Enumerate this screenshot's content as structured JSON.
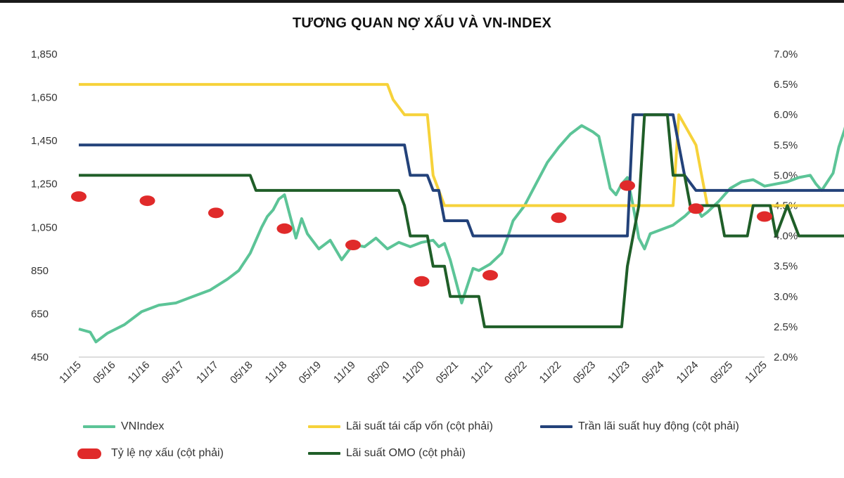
{
  "chart_data": {
    "type": "line",
    "title": "TƯƠNG QUAN NỢ XẤU VÀ VN-INDEX",
    "xlabel": "",
    "ylabel_left": "",
    "ylabel_right": "",
    "x_tick_labels": [
      "11/15",
      "05/16",
      "11/16",
      "05/17",
      "11/17",
      "05/18",
      "11/18",
      "05/19",
      "11/19",
      "05/20",
      "11/20",
      "05/21",
      "11/21",
      "05/22",
      "11/22",
      "05/23",
      "11/23",
      "05/24",
      "11/24",
      "05/25",
      "11/25"
    ],
    "y_left_ticks": [
      "1,850",
      "1,650",
      "1,450",
      "1,250",
      "1,050",
      "850",
      "650",
      "450"
    ],
    "y_right_ticks": [
      "7.0%",
      "6.5%",
      "6.0%",
      "5.5%",
      "5.0%",
      "4.5%",
      "4.0%",
      "3.5%",
      "3.0%",
      "2.5%",
      "2.0%"
    ],
    "ylim_left": [
      450,
      1850
    ],
    "ylim_right": [
      2.0,
      7.0
    ],
    "x_range_months": [
      0,
      120
    ],
    "grid": false,
    "legend_position": "bottom",
    "series": [
      {
        "name": "VNIndex",
        "axis": "left",
        "color": "#5cc497",
        "points": [
          [
            0,
            580
          ],
          [
            2,
            565
          ],
          [
            3,
            520
          ],
          [
            5,
            560
          ],
          [
            8,
            600
          ],
          [
            11,
            660
          ],
          [
            14,
            690
          ],
          [
            17,
            700
          ],
          [
            20,
            730
          ],
          [
            23,
            760
          ],
          [
            26,
            810
          ],
          [
            28,
            850
          ],
          [
            30,
            930
          ],
          [
            32,
            1050
          ],
          [
            33,
            1100
          ],
          [
            34,
            1130
          ],
          [
            35,
            1180
          ],
          [
            36,
            1200
          ],
          [
            37,
            1100
          ],
          [
            38,
            1000
          ],
          [
            39,
            1090
          ],
          [
            40,
            1020
          ],
          [
            42,
            950
          ],
          [
            44,
            990
          ],
          [
            46,
            900
          ],
          [
            48,
            970
          ],
          [
            50,
            960
          ],
          [
            52,
            1000
          ],
          [
            54,
            950
          ],
          [
            56,
            980
          ],
          [
            58,
            960
          ],
          [
            60,
            980
          ],
          [
            62,
            990
          ],
          [
            63,
            960
          ],
          [
            64,
            975
          ],
          [
            65,
            900
          ],
          [
            66,
            800
          ],
          [
            67,
            700
          ],
          [
            68,
            780
          ],
          [
            69,
            860
          ],
          [
            70,
            850
          ],
          [
            72,
            880
          ],
          [
            74,
            930
          ],
          [
            75,
            1000
          ],
          [
            76,
            1080
          ],
          [
            78,
            1150
          ],
          [
            80,
            1250
          ],
          [
            82,
            1350
          ],
          [
            84,
            1420
          ],
          [
            86,
            1480
          ],
          [
            88,
            1520
          ],
          [
            90,
            1490
          ],
          [
            91,
            1470
          ],
          [
            92,
            1350
          ],
          [
            93,
            1230
          ],
          [
            94,
            1200
          ],
          [
            95,
            1250
          ],
          [
            96,
            1280
          ],
          [
            97,
            1150
          ],
          [
            98,
            1000
          ],
          [
            99,
            950
          ],
          [
            100,
            1020
          ],
          [
            102,
            1040
          ],
          [
            104,
            1060
          ],
          [
            106,
            1100
          ],
          [
            108,
            1150
          ],
          [
            109,
            1100
          ],
          [
            110,
            1120
          ],
          [
            112,
            1170
          ],
          [
            114,
            1230
          ],
          [
            116,
            1260
          ],
          [
            118,
            1270
          ],
          [
            120,
            1240
          ],
          [
            122,
            1250
          ],
          [
            124,
            1260
          ],
          [
            126,
            1280
          ],
          [
            128,
            1290
          ],
          [
            129,
            1250
          ],
          [
            130,
            1220
          ],
          [
            131,
            1260
          ],
          [
            132,
            1300
          ],
          [
            133,
            1420
          ],
          [
            134,
            1500
          ],
          [
            135,
            1600
          ],
          [
            136,
            1680
          ],
          [
            137,
            1730
          ],
          [
            138,
            1760
          ],
          [
            139,
            1650
          ],
          [
            140,
            1700
          ],
          [
            141,
            1750
          ]
        ]
      },
      {
        "name": "Lãi suất tái cấp vốn (cột phải)",
        "axis": "right",
        "color": "#f6d23a",
        "points": [
          [
            0,
            6.5
          ],
          [
            54,
            6.5
          ],
          [
            55,
            6.25
          ],
          [
            57,
            6.0
          ],
          [
            61,
            6.0
          ],
          [
            62,
            5.0
          ],
          [
            64,
            4.5
          ],
          [
            67,
            4.5
          ],
          [
            78,
            4.5
          ],
          [
            104,
            4.5
          ],
          [
            105,
            6.0
          ],
          [
            108,
            5.5
          ],
          [
            109,
            5.0
          ],
          [
            110,
            4.5
          ],
          [
            141,
            4.5
          ]
        ]
      },
      {
        "name": "Trần lãi suất huy động (cột phải)",
        "axis": "right",
        "color": "#23427a",
        "points": [
          [
            0,
            5.5
          ],
          [
            57,
            5.5
          ],
          [
            58,
            5.0
          ],
          [
            61,
            5.0
          ],
          [
            62,
            4.75
          ],
          [
            63,
            4.75
          ],
          [
            64,
            4.25
          ],
          [
            68,
            4.25
          ],
          [
            69,
            4.0
          ],
          [
            96,
            4.0
          ],
          [
            97,
            6.0
          ],
          [
            104,
            6.0
          ],
          [
            105,
            5.5
          ],
          [
            106,
            5.0
          ],
          [
            108,
            4.75
          ],
          [
            141,
            4.75
          ]
        ]
      },
      {
        "name": "Lãi suất OMO (cột phải)",
        "axis": "right",
        "color": "#1f5e28",
        "points": [
          [
            0,
            5.0
          ],
          [
            30,
            5.0
          ],
          [
            31,
            4.75
          ],
          [
            56,
            4.75
          ],
          [
            57,
            4.5
          ],
          [
            58,
            4.0
          ],
          [
            61,
            4.0
          ],
          [
            62,
            3.5
          ],
          [
            64,
            3.5
          ],
          [
            65,
            3.0
          ],
          [
            70,
            3.0
          ],
          [
            71,
            2.5
          ],
          [
            86,
            2.5
          ],
          [
            95,
            2.5
          ],
          [
            96,
            3.5
          ],
          [
            97,
            4.0
          ],
          [
            98,
            4.5
          ],
          [
            99,
            6.0
          ],
          [
            103,
            6.0
          ],
          [
            104,
            5.0
          ],
          [
            106,
            5.0
          ],
          [
            107,
            4.5
          ],
          [
            112,
            4.5
          ],
          [
            113,
            4.0
          ],
          [
            117,
            4.0
          ],
          [
            118,
            4.5
          ],
          [
            121,
            4.5
          ],
          [
            122,
            4.0
          ],
          [
            124,
            4.5
          ],
          [
            125,
            4.25
          ],
          [
            126,
            4.0
          ],
          [
            141,
            4.0
          ],
          [
            141,
            4.5
          ]
        ]
      }
    ],
    "scatter_series": {
      "name": "Tỷ lệ nợ xấu (cột phải)",
      "axis": "right",
      "color": "#e02a2a",
      "points": [
        [
          0,
          4.65
        ],
        [
          12,
          4.58
        ],
        [
          24,
          4.38
        ],
        [
          36,
          4.12
        ],
        [
          48,
          3.85
        ],
        [
          60,
          3.25
        ],
        [
          72,
          3.35
        ],
        [
          84,
          4.3
        ],
        [
          96,
          4.83
        ],
        [
          108,
          4.45
        ],
        [
          120,
          4.32
        ]
      ]
    }
  },
  "legend": {
    "vnindex": "VNIndex",
    "refinancing": "Lãi suất tái cấp vốn (cột phải)",
    "deposit_cap": "Trần lãi suất huy động (cột phải)",
    "npl": "Tỷ lệ nợ xấu (cột phải)",
    "omo": "Lãi suất OMO (cột phải)"
  }
}
